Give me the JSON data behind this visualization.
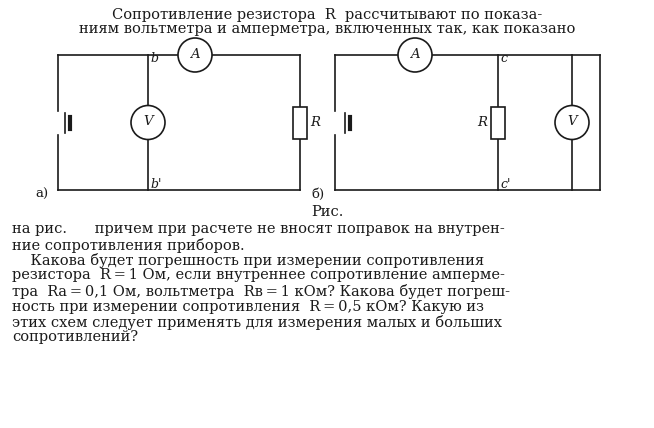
{
  "title_line1": "Сопротивление резистора  R  рассчитывают по показа-",
  "title_line2": "ниям вольтметра и амперметра, включенных так, как показано",
  "caption": "Рис.",
  "text_line1": "на рис.      причем при расчете не вносят поправок на внутрен-",
  "text_line2": "ние сопротивления приборов.",
  "text_line3": "    Какова будет погрешность при измерении сопротивления",
  "text_line4": "резистора  R = 1 Ом, если внутреннее сопротивление амперме-",
  "text_line5": "тра  Rа = 0,1 Ом, вольтметра  Rв = 1 кОм? Какова будет погреш-",
  "text_line6": "ность при измерении сопротивления  R = 0,5 кОм? Какую из",
  "text_line7": "этих схем следует применять для измерения малых и больших",
  "text_line8": "сопротивлений?",
  "bg_color": "#ffffff",
  "line_color": "#1a1a1a",
  "font_size_title": 10.5,
  "font_size_body": 10.5,
  "font_size_circuit": 9.5
}
